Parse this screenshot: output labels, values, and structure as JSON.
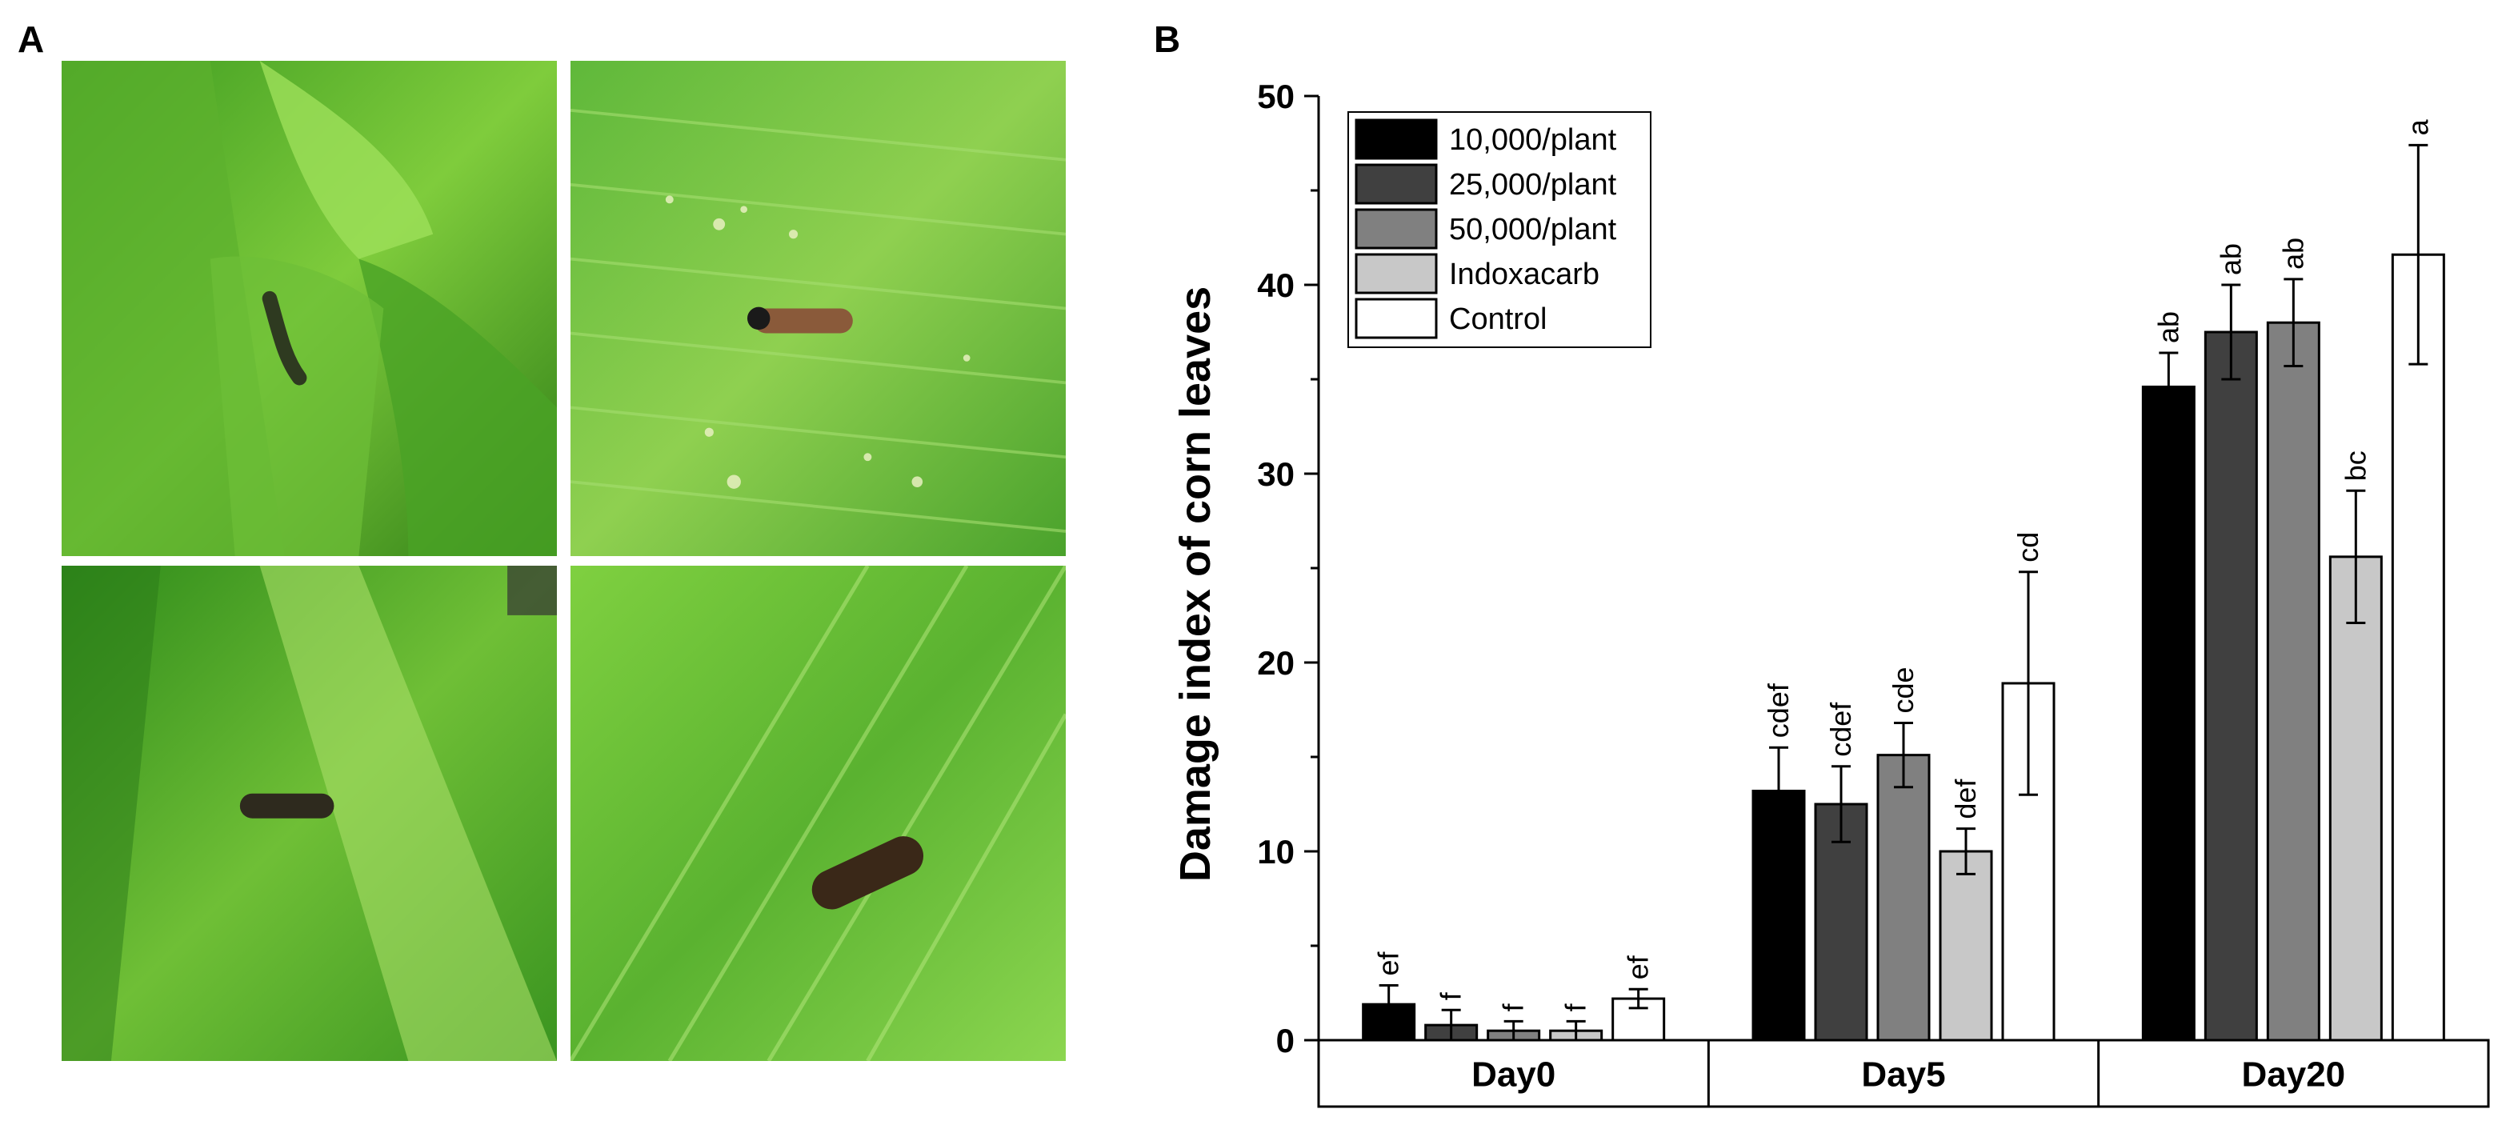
{
  "panel_labels": {
    "a": "A",
    "b": "B"
  },
  "photos": [
    {
      "name": "larva-in-whorl",
      "icon": "caterpillar-on-corn-whorl"
    },
    {
      "name": "larva-on-leaf-with-frass",
      "icon": "caterpillar-on-leaf"
    },
    {
      "name": "larva-on-leaf-midrib",
      "icon": "caterpillar-on-leaf"
    },
    {
      "name": "larva-on-leaf-close",
      "icon": "caterpillar-on-leaf"
    }
  ],
  "colors": {
    "leaf_dark": "#2f8a1c",
    "leaf_light": "#8ed14a",
    "larva": "#3a2a1a"
  },
  "chart_data": {
    "type": "bar",
    "ylabel": "Damage index of corn leaves",
    "ylim": [
      0,
      50
    ],
    "yticks": [
      "0",
      "10",
      "20",
      "30",
      "40",
      "50"
    ],
    "ytick_values": [
      0,
      10,
      20,
      30,
      40,
      50
    ],
    "categories": [
      "Day0",
      "Day5",
      "Day20"
    ],
    "legend_position": "top-left",
    "series": [
      {
        "name": "10,000/plant",
        "color": "#000000",
        "values": [
          1.9,
          13.2,
          34.6
        ],
        "errors": [
          1.0,
          2.3,
          1.8
        ],
        "letters": [
          "ef",
          "cdef",
          "ab"
        ]
      },
      {
        "name": "25,000/plant",
        "color": "#404040",
        "values": [
          0.8,
          12.5,
          37.5
        ],
        "errors": [
          0.8,
          2.0,
          2.5
        ],
        "letters": [
          "f",
          "cdef",
          "ab"
        ]
      },
      {
        "name": "50,000/plant",
        "color": "#808080",
        "values": [
          0.5,
          15.1,
          38.0
        ],
        "errors": [
          0.5,
          1.7,
          2.3
        ],
        "letters": [
          "f",
          "cde",
          "ab"
        ]
      },
      {
        "name": "Indoxacarb",
        "color": "#c8c8c8",
        "values": [
          0.5,
          10.0,
          25.6
        ],
        "errors": [
          0.5,
          1.2,
          3.5
        ],
        "letters": [
          "f",
          "def",
          "bc"
        ]
      },
      {
        "name": "Control",
        "color": "#ffffff",
        "values": [
          2.2,
          18.9,
          41.6
        ],
        "errors": [
          0.5,
          5.9,
          5.8
        ],
        "letters": [
          "ef",
          "cd",
          "a"
        ]
      }
    ]
  }
}
